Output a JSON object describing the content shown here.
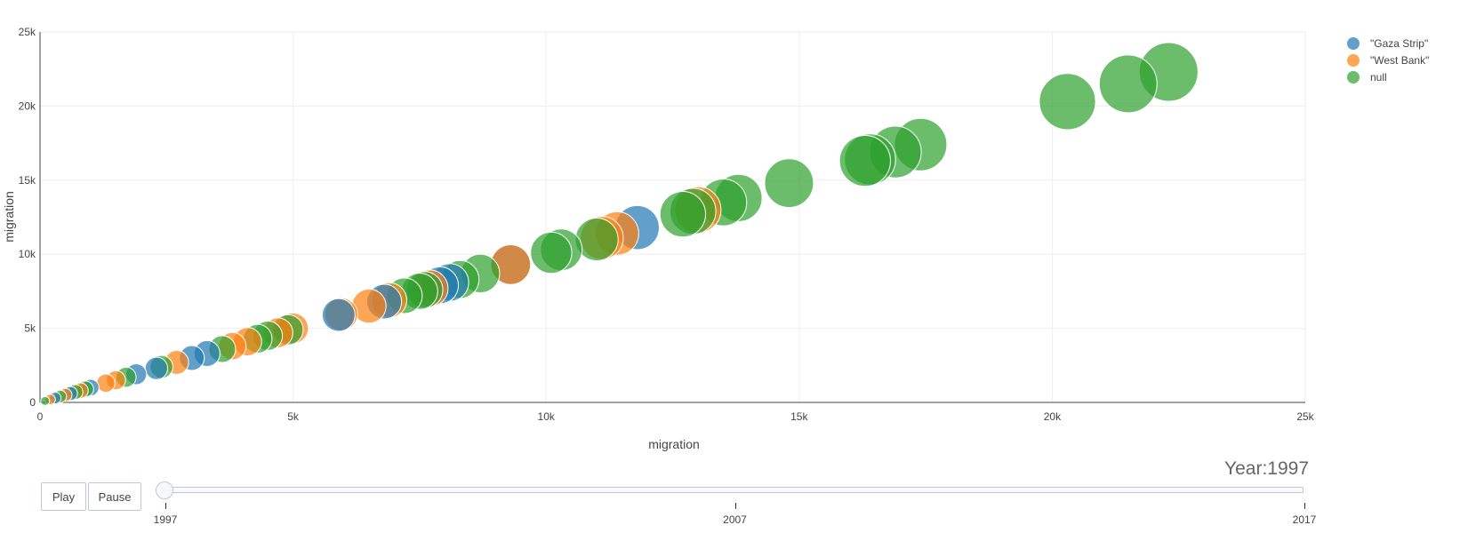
{
  "chart_data": {
    "type": "scatter",
    "xlabel": "migration",
    "ylabel": "migration",
    "xlim": [
      0,
      25000
    ],
    "ylim": [
      0,
      25000
    ],
    "x_ticks": [
      "0",
      "5k",
      "10k",
      "15k",
      "20k",
      "25k"
    ],
    "y_ticks": [
      "0",
      "5k",
      "10k",
      "15k",
      "20k",
      "25k"
    ],
    "grid": true,
    "legend_position": "top-right",
    "series": [
      {
        "name": "\"Gaza Strip\"",
        "color": "#1f77b4",
        "points": [
          [
            300,
            300
          ],
          [
            600,
            600
          ],
          [
            1000,
            1000
          ],
          [
            1900,
            1900
          ],
          [
            2300,
            2300
          ],
          [
            3000,
            3000
          ],
          [
            3300,
            3300
          ],
          [
            5900,
            5900
          ],
          [
            6800,
            6800
          ],
          [
            7900,
            7900
          ],
          [
            8100,
            8100
          ],
          [
            9300,
            9300
          ],
          [
            11800,
            11800
          ]
        ]
      },
      {
        "name": "\"West Bank\"",
        "color": "#ff7f0e",
        "points": [
          [
            200,
            200
          ],
          [
            500,
            500
          ],
          [
            800,
            800
          ],
          [
            1300,
            1300
          ],
          [
            1500,
            1500
          ],
          [
            2700,
            2700
          ],
          [
            3800,
            3800
          ],
          [
            4100,
            4100
          ],
          [
            4700,
            4700
          ],
          [
            5000,
            5000
          ],
          [
            5950,
            5950
          ],
          [
            6500,
            6500
          ],
          [
            6900,
            6900
          ],
          [
            7700,
            7700
          ],
          [
            9300,
            9300
          ],
          [
            11100,
            11100
          ],
          [
            11400,
            11400
          ],
          [
            13000,
            13000
          ]
        ]
      },
      {
        "name": "null",
        "color": "#2ca02c",
        "points": [
          [
            100,
            100
          ],
          [
            400,
            400
          ],
          [
            700,
            700
          ],
          [
            900,
            900
          ],
          [
            1700,
            1700
          ],
          [
            2400,
            2400
          ],
          [
            3600,
            3600
          ],
          [
            4300,
            4300
          ],
          [
            4500,
            4500
          ],
          [
            4900,
            4900
          ],
          [
            7200,
            7200
          ],
          [
            7500,
            7500
          ],
          [
            7600,
            7600
          ],
          [
            8300,
            8300
          ],
          [
            8700,
            8700
          ],
          [
            10100,
            10100
          ],
          [
            10300,
            10300
          ],
          [
            11000,
            11000
          ],
          [
            12700,
            12700
          ],
          [
            12900,
            12900
          ],
          [
            13500,
            13500
          ],
          [
            13800,
            13800
          ],
          [
            14800,
            14800
          ],
          [
            16300,
            16300
          ],
          [
            16400,
            16400
          ],
          [
            16900,
            16900
          ],
          [
            17400,
            17400
          ],
          [
            20300,
            20300
          ],
          [
            21500,
            21500
          ],
          [
            22300,
            22300
          ]
        ]
      }
    ]
  },
  "controls": {
    "play_label": "Play",
    "pause_label": "Pause",
    "year_prefix": "Year:",
    "year_value": "1997",
    "slider_labels": [
      "1997",
      "2007",
      "2017"
    ]
  }
}
